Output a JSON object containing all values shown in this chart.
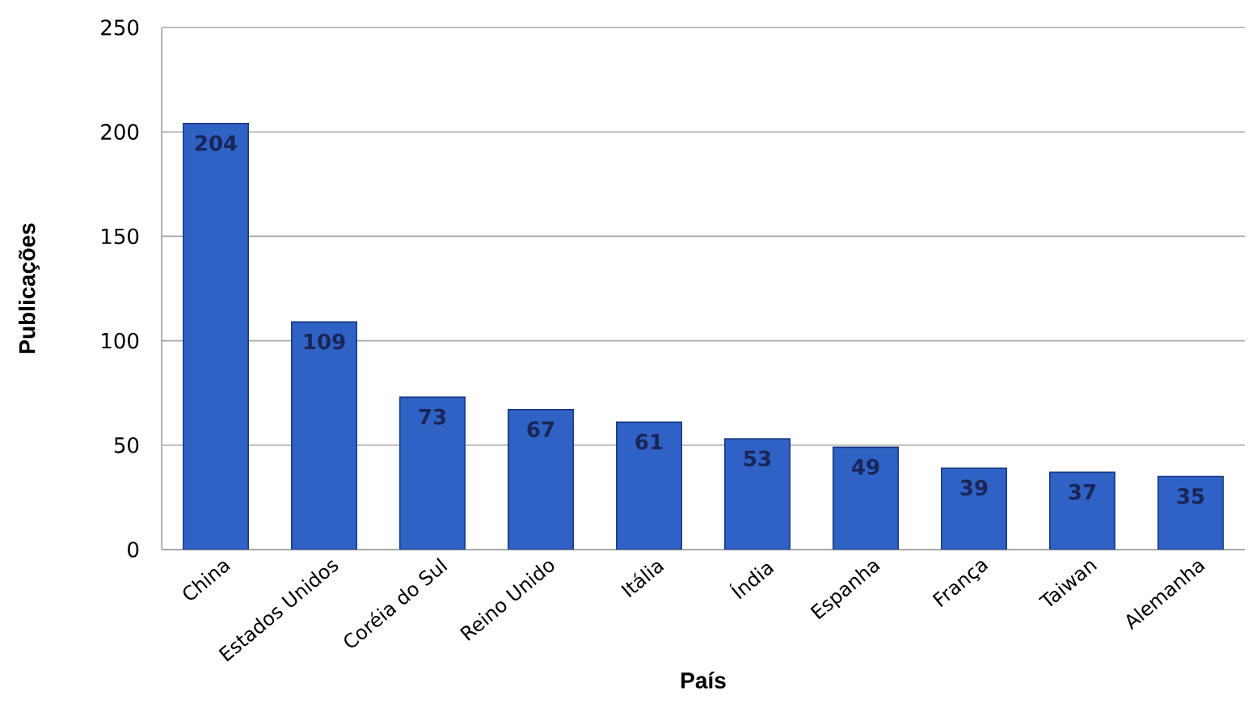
{
  "chart_data": {
    "type": "bar",
    "categories": [
      "China",
      "Estados Unidos",
      "Coréia do Sul",
      "Reino Unido",
      "Itália",
      "Índia",
      "Espanha",
      "França",
      "Taiwan",
      "Alemanha"
    ],
    "values": [
      204,
      109,
      73,
      67,
      61,
      53,
      49,
      39,
      37,
      35
    ],
    "color": "#2f62c4",
    "xlabel": "País",
    "ylabel": "Publicações",
    "ylim": [
      0,
      250
    ],
    "yticks": [
      0,
      50,
      100,
      150,
      200,
      250
    ],
    "grid": "y",
    "data_labels": true
  }
}
